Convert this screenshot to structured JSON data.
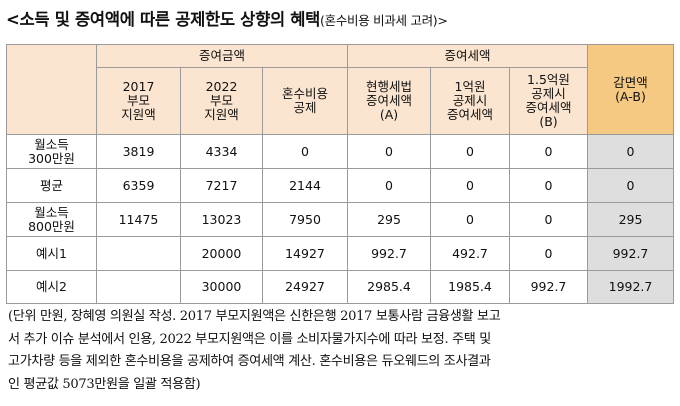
{
  "title": {
    "main": "<소득 및 증여액에 따른 공제한도 상향의 혜택",
    "sub": "(혼수비용 비과세 고려)>"
  },
  "table": {
    "group_headers": {
      "gift_amount": "증여금액",
      "gift_tax": "증여세액"
    },
    "columns": [
      "2017\n부모\n지원액",
      "2022\n부모\n지원액",
      "혼수비용\n공제",
      "현행세법\n증여세액\n(A)",
      "1억원\n공제시\n증여세액",
      "1.5억원\n공제시\n증여세액\n(B)",
      "감면액\n(A-B)"
    ],
    "rows": [
      {
        "label": "월소득\n300만원",
        "values": [
          "3819",
          "4334",
          "0",
          "0",
          "0",
          "0",
          "0"
        ]
      },
      {
        "label": "평균",
        "values": [
          "6359",
          "7217",
          "2144",
          "0",
          "0",
          "0",
          "0"
        ]
      },
      {
        "label": "월소득\n800만원",
        "values": [
          "11475",
          "13023",
          "7950",
          "295",
          "0",
          "0",
          "295"
        ]
      },
      {
        "label": "예시1",
        "values": [
          "",
          "20000",
          "14927",
          "992.7",
          "492.7",
          "0",
          "992.7"
        ]
      },
      {
        "label": "예시2",
        "values": [
          "",
          "30000",
          "24927",
          "2985.4",
          "1985.4",
          "992.7",
          "1992.7"
        ]
      }
    ]
  },
  "note": {
    "lines": [
      "(단위 만원, 장혜영 의원실 작성. 2017 부모지원액은 신한은행 2017 보통사람 금융생활 보고",
      "서 추가 이슈 분석에서 인용, 2022 부모지원액은 이를 소비자물가지수에 따라 보정. 주택 및",
      "고가차량 등을 제외한 혼수비용을 공제하여 증여세액 계산. 혼수비용은 듀오웨드의 조사결과",
      "인 평균값 5073만원을 일괄 적용함)"
    ]
  }
}
